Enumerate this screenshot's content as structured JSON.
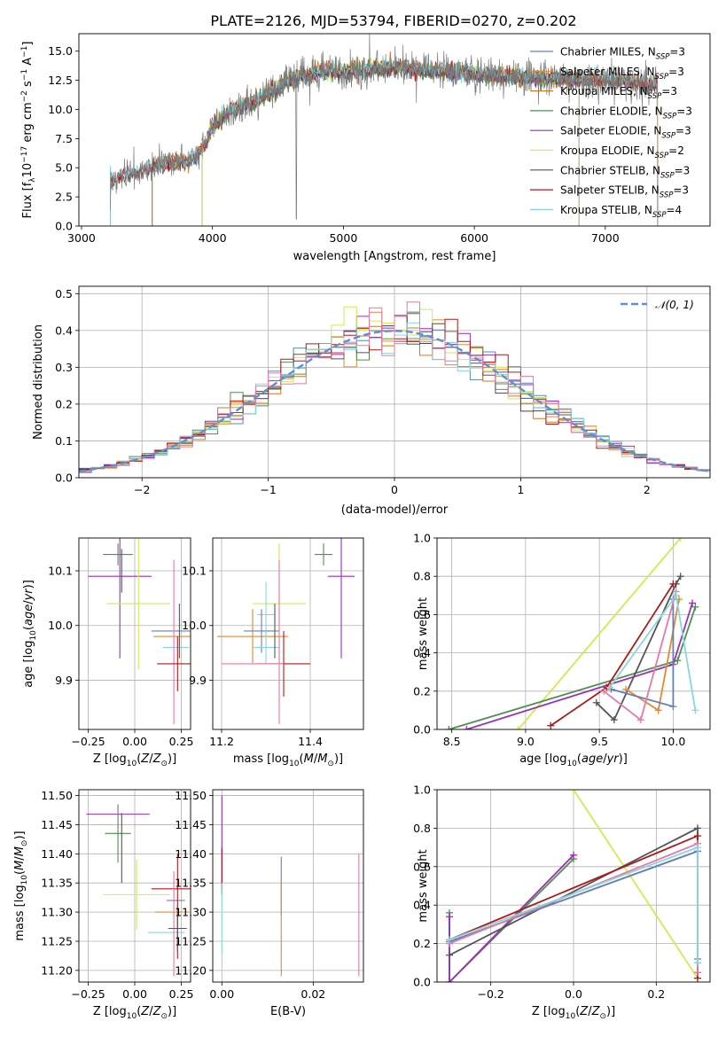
{
  "title": "PLATE=2126, MJD=53794, FIBERID=0270, z=0.202",
  "colors": {
    "chabrier_miles": "#5f81c4",
    "salpeter_miles": "#e8872c",
    "kroupa_miles": "#c97c21",
    "chabrier_elodie": "#4f8f4f",
    "salpeter_elodie": "#9b2fb8",
    "kroupa_elodie": "#d6e84f",
    "chabrier_stelib": "#555555",
    "salpeter_stelib": "#b01818",
    "kroupa_stelib": "#86d8e0",
    "pink": "#e878a8",
    "normal_curve": "#5f8fd8",
    "grid": "#b0b0b0"
  },
  "chart_data": [
    {
      "id": "spectrum",
      "type": "line",
      "xlabel": "wavelength [Angstrom, rest frame]",
      "ylabel": "Flux [fλ10⁻¹⁷ erg cm⁻² s⁻¹ A⁻¹]",
      "xlim": [
        2980,
        7800
      ],
      "ylim": [
        0,
        16.5
      ],
      "xticks": [
        "3000",
        "4000",
        "5000",
        "6000",
        "7000"
      ],
      "yticks": [
        "0.0",
        "2.5",
        "5.0",
        "7.5",
        "10.0",
        "12.5",
        "15.0"
      ],
      "grid": false,
      "legend_position": "top-right",
      "continuum": {
        "x": [
          3220,
          3300,
          3400,
          3500,
          3600,
          3700,
          3800,
          3900,
          3950,
          4000,
          4100,
          4200,
          4300,
          4400,
          4500,
          4600,
          4700,
          4800,
          4900,
          5000,
          5200,
          5400,
          5600,
          5800,
          6000,
          6200,
          6400,
          6600,
          6800,
          7000,
          7200,
          7400
        ],
        "y": [
          3.8,
          4.3,
          4.6,
          4.9,
          5.2,
          5.6,
          5.4,
          6.2,
          7.2,
          8.6,
          9.6,
          10.2,
          10.6,
          11.3,
          11.9,
          12.6,
          12.9,
          13.2,
          13.4,
          13.2,
          13.5,
          13.6,
          13.4,
          13.3,
          13.1,
          12.9,
          12.8,
          12.7,
          12.6,
          12.5,
          12.3,
          12.2
        ]
      },
      "series": [
        {
          "name": "Chabrier MILES, N_SSP=3",
          "color": "#5f81c4",
          "xstart": 3540,
          "xend": 7400
        },
        {
          "name": "Salpeter MILES, N_SSP=3",
          "color": "#e8872c",
          "xstart": 3540,
          "xend": 7400
        },
        {
          "name": "Kroupa MILES, N_SSP=3",
          "color": "#c97c21",
          "xstart": 3540,
          "xend": 7400
        },
        {
          "name": "Chabrier ELODIE, N_SSP=3",
          "color": "#4f8f4f",
          "xstart": 3920,
          "xend": 6800
        },
        {
          "name": "Salpeter ELODIE, N_SSP=3",
          "color": "#9b2fb8",
          "xstart": 3920,
          "xend": 6800
        },
        {
          "name": "Kroupa ELODIE, N_SSP=2",
          "color": "#d6e84f",
          "xstart": 3920,
          "xend": 6800
        },
        {
          "name": "Chabrier STELIB, N_SSP=3",
          "color": "#555555",
          "xstart": 3220,
          "xend": 7400
        },
        {
          "name": "Salpeter STELIB, N_SSP=3",
          "color": "#b01818",
          "xstart": 3220,
          "xend": 7400
        },
        {
          "name": "Kroupa STELIB, N_SSP=4",
          "color": "#86d8e0",
          "xstart": 3220,
          "xend": 7400
        }
      ],
      "legend": [
        {
          "pre": "Chabrier MILES, N",
          "sub": "SSP",
          "post": "=3",
          "color": "#5f81c4"
        },
        {
          "pre": "Salpeter MILES, N",
          "sub": "SSP",
          "post": "=3",
          "color": "#e8872c"
        },
        {
          "pre": "Kroupa MILES, N",
          "sub": "SSP",
          "post": "=3",
          "color": "#c97c21"
        },
        {
          "pre": "Chabrier ELODIE, N",
          "sub": "SSP",
          "post": "=3",
          "color": "#4f8f4f"
        },
        {
          "pre": "Salpeter ELODIE, N",
          "sub": "SSP",
          "post": "=3",
          "color": "#9b2fb8"
        },
        {
          "pre": "Kroupa ELODIE, N",
          "sub": "SSP",
          "post": "=2",
          "color": "#d6e84f"
        },
        {
          "pre": "Chabrier STELIB, N",
          "sub": "SSP",
          "post": "=3",
          "color": "#555555"
        },
        {
          "pre": "Salpeter STELIB, N",
          "sub": "SSP",
          "post": "=3",
          "color": "#b01818"
        },
        {
          "pre": "Kroupa STELIB, N",
          "sub": "SSP",
          "post": "=4",
          "color": "#86d8e0"
        }
      ]
    },
    {
      "id": "residuals",
      "type": "line",
      "xlabel": "(data-model)/error",
      "ylabel": "Normed distribution",
      "xlim": [
        -2.5,
        2.5
      ],
      "ylim": [
        0,
        0.52
      ],
      "xticks": [
        "−2",
        "−1",
        "0",
        "1",
        "2"
      ],
      "yticks": [
        "0.0",
        "0.1",
        "0.2",
        "0.3",
        "0.4",
        "0.5"
      ],
      "grid": true,
      "legend_position": "top-right",
      "legend": [
        {
          "text": "𝒩(0, 1)",
          "color": "#5f8fd8"
        }
      ],
      "bin_width": 0.1
    },
    {
      "id": "age_vs_Z",
      "type": "scatter",
      "xlabel": "Z [log₁₀(Z/Z⊙)]",
      "ylabel": "age  [log₁₀(age/yr)]",
      "xlim": [
        -0.3,
        0.3
      ],
      "ylim": [
        9.81,
        10.16
      ],
      "xticks": [
        "−0.25",
        "0.00",
        "0.25"
      ],
      "yticks": [
        "9.9",
        "10.0",
        "10.1"
      ],
      "grid": true,
      "points": [
        {
          "x": -0.09,
          "y": 10.13,
          "xerr": 0.08,
          "yerr": 0.02,
          "color": "#4f8f4f"
        },
        {
          "x": -0.08,
          "y": 10.09,
          "xerr": 0.17,
          "yerr": 0.15,
          "color": "#9b2fb8"
        },
        {
          "x": -0.07,
          "y": 10.1,
          "xerr": 0.0,
          "yerr": 0.04,
          "color": "#555555"
        },
        {
          "x": 0.02,
          "y": 10.04,
          "xerr": 0.17,
          "yerr": 0.12,
          "color": "#d6e84f"
        },
        {
          "x": 0.2,
          "y": 9.99,
          "xerr": 0.11,
          "yerr": 0.0,
          "color": "#5f81c4"
        },
        {
          "x": 0.2,
          "y": 9.98,
          "xerr": 0.1,
          "yerr": 0.0,
          "color": "#e8872c"
        },
        {
          "x": 0.22,
          "y": 9.96,
          "xerr": 0.07,
          "yerr": 0.0,
          "color": "#86d8e0"
        },
        {
          "x": 0.21,
          "y": 9.97,
          "xerr": 0.0,
          "yerr": 0.15,
          "color": "#e878a8"
        },
        {
          "x": 0.23,
          "y": 9.93,
          "xerr": 0.11,
          "yerr": 0.05,
          "color": "#b01818"
        },
        {
          "x": 0.24,
          "y": 9.99,
          "xerr": 0.0,
          "yerr": 0.05,
          "color": "#555555"
        }
      ]
    },
    {
      "id": "age_vs_mass",
      "type": "scatter",
      "xlabel": "mass [log₁₀(M/M⊙)]",
      "ylabel": "",
      "xlim": [
        11.18,
        11.52
      ],
      "ylim": [
        9.81,
        10.16
      ],
      "xticks": [
        "11.2",
        "11.4"
      ],
      "yticks": [
        "9.9",
        "10.0",
        "10.1"
      ],
      "grid": true,
      "points": [
        {
          "x": 11.43,
          "y": 10.13,
          "xerr": 0.02,
          "yerr": 0.02,
          "color": "#4f8f4f"
        },
        {
          "x": 11.47,
          "y": 10.09,
          "xerr": 0.03,
          "yerr": 0.15,
          "color": "#9b2fb8"
        },
        {
          "x": 11.33,
          "y": 10.04,
          "xerr": 0.06,
          "yerr": 0.11,
          "color": "#d6e84f"
        },
        {
          "x": 11.3,
          "y": 10.02,
          "xerr": 0.02,
          "yerr": 0.06,
          "color": "#86d8e0"
        },
        {
          "x": 11.27,
          "y": 9.98,
          "xerr": 0.08,
          "yerr": 0.05,
          "color": "#e8872c"
        },
        {
          "x": 11.29,
          "y": 9.99,
          "xerr": 0.04,
          "yerr": 0.04,
          "color": "#5f81c4"
        },
        {
          "x": 11.3,
          "y": 9.96,
          "xerr": 0.03,
          "yerr": 0.03,
          "color": "#86d8e0"
        },
        {
          "x": 11.34,
          "y": 9.93,
          "xerr": 0.06,
          "yerr": 0.06,
          "color": "#b01818"
        },
        {
          "x": 11.33,
          "y": 9.97,
          "xerr": 0.0,
          "yerr": 0.15,
          "color": "#e878a8"
        },
        {
          "x": 11.27,
          "y": 9.93,
          "xerr": 0.07,
          "yerr": 0.0,
          "color": "#e878a8"
        },
        {
          "x": 11.32,
          "y": 9.99,
          "xerr": 0.0,
          "yerr": 0.05,
          "color": "#555555"
        }
      ]
    },
    {
      "id": "weight_vs_age",
      "type": "line",
      "xlabel": "age  [log₁₀(age/yr)]",
      "ylabel": "mass weight",
      "xlim": [
        8.4,
        10.25
      ],
      "ylim": [
        0,
        1
      ],
      "xticks": [
        "8.5",
        "9.0",
        "9.5",
        "10.0"
      ],
      "yticks": [
        "0.0",
        "0.2",
        "0.4",
        "0.6",
        "0.8",
        "1.0"
      ],
      "grid": true,
      "series": [
        {
          "color": "#d6e84f",
          "x": [
            8.95,
            10.05
          ],
          "y": [
            0.0,
            1.0
          ]
        },
        {
          "color": "#4f8f4f",
          "x": [
            8.48,
            10.03,
            10.15
          ],
          "y": [
            0.0,
            0.36,
            0.64
          ]
        },
        {
          "color": "#9b2fb8",
          "x": [
            8.6,
            10.0,
            10.13
          ],
          "y": [
            0.0,
            0.34,
            0.66
          ]
        },
        {
          "color": "#555555",
          "x": [
            9.48,
            9.6,
            10.02,
            10.05
          ],
          "y": [
            0.14,
            0.05,
            0.76,
            0.8
          ]
        },
        {
          "color": "#b01818",
          "x": [
            9.17,
            9.55,
            10.0
          ],
          "y": [
            0.02,
            0.22,
            0.76
          ]
        },
        {
          "color": "#e8872c",
          "x": [
            9.68,
            9.9,
            10.04
          ],
          "y": [
            0.21,
            0.1,
            0.68
          ]
        },
        {
          "color": "#5f81c4",
          "x": [
            9.58,
            10.0,
            10.0
          ],
          "y": [
            0.21,
            0.12,
            0.68
          ]
        },
        {
          "color": "#e878a8",
          "x": [
            9.53,
            9.78,
            10.02
          ],
          "y": [
            0.2,
            0.05,
            0.72
          ]
        },
        {
          "color": "#86d8e0",
          "x": [
            9.57,
            10.02,
            10.15
          ],
          "y": [
            0.22,
            0.7,
            0.1
          ]
        }
      ]
    },
    {
      "id": "mass_vs_Z",
      "type": "scatter",
      "xlabel": "Z [log₁₀(Z/Z⊙)]",
      "ylabel": "mass [log₁₀(M/M⊙)]",
      "xlim": [
        -0.3,
        0.3
      ],
      "ylim": [
        11.18,
        11.51
      ],
      "xticks": [
        "−0.25",
        "0.00",
        "0.25"
      ],
      "yticks": [
        "11.20",
        "11.25",
        "11.30",
        "11.35",
        "11.40",
        "11.45",
        "11.50"
      ],
      "grid": true,
      "points": [
        {
          "x": -0.09,
          "y": 11.468,
          "xerr": 0.17,
          "yerr": 0.0,
          "color": "#9b2fb8"
        },
        {
          "x": -0.09,
          "y": 11.435,
          "xerr": 0.07,
          "yerr": 0.05,
          "color": "#4f8f4f"
        },
        {
          "x": -0.07,
          "y": 11.41,
          "xerr": 0.0,
          "yerr": 0.06,
          "color": "#555555"
        },
        {
          "x": 0.01,
          "y": 11.33,
          "xerr": 0.18,
          "yerr": 0.06,
          "color": "#d6e84f"
        },
        {
          "x": 0.2,
          "y": 11.34,
          "xerr": 0.11,
          "yerr": 0.0,
          "color": "#b01818"
        },
        {
          "x": 0.2,
          "y": 11.3,
          "xerr": 0.09,
          "yerr": 0.0,
          "color": "#e8872c"
        },
        {
          "x": 0.22,
          "y": 11.32,
          "xerr": 0.05,
          "yerr": 0.0,
          "color": "#5f81c4"
        },
        {
          "x": 0.17,
          "y": 11.265,
          "xerr": 0.1,
          "yerr": 0.0,
          "color": "#86d8e0"
        },
        {
          "x": 0.21,
          "y": 11.28,
          "xerr": 0.0,
          "yerr": 0.09,
          "color": "#e878a8"
        },
        {
          "x": 0.23,
          "y": 11.31,
          "xerr": 0.0,
          "yerr": 0.09,
          "color": "#b01818"
        },
        {
          "x": 0.23,
          "y": 11.272,
          "xerr": 0.05,
          "yerr": 0.04,
          "color": "#555555"
        }
      ]
    },
    {
      "id": "mass_vs_EBV",
      "type": "scatter",
      "xlabel": "E(B-V)",
      "ylabel": "",
      "xlim": [
        -0.002,
        0.031
      ],
      "ylim": [
        11.18,
        11.51
      ],
      "xticks": [
        "0.00",
        "0.02"
      ],
      "yticks": [
        "11.20",
        "11.25",
        "11.30",
        "11.35",
        "11.40",
        "11.45",
        "11.50"
      ],
      "grid": true,
      "points": [
        {
          "x": 0.0,
          "y": 11.42,
          "xerr": 0.0,
          "yerr": 0.08,
          "color": "#9b2fb8"
        },
        {
          "x": 0.0,
          "y": 11.37,
          "xerr": 0.0,
          "yerr": 0.04,
          "color": "#b01818"
        },
        {
          "x": 0.0,
          "y": 11.29,
          "xerr": 0.0,
          "yerr": 0.06,
          "color": "#86d8e0"
        },
        {
          "x": 0.013,
          "y": 11.345,
          "xerr": 0.0,
          "yerr": 0.05,
          "color": "#5f81c4"
        },
        {
          "x": 0.013,
          "y": 11.275,
          "xerr": 0.0,
          "yerr": 0.085,
          "color": "#e8872c"
        },
        {
          "x": 0.03,
          "y": 11.295,
          "xerr": 0.0,
          "yerr": 0.105,
          "color": "#e878a8"
        }
      ]
    },
    {
      "id": "weight_vs_Z",
      "type": "line",
      "xlabel": "Z [log₁₀(Z/Z⊙)]",
      "ylabel": "mass weight",
      "xlim": [
        -0.33,
        0.33
      ],
      "ylim": [
        0,
        1
      ],
      "xticks": [
        "−0.2",
        "0.0",
        "0.2"
      ],
      "yticks": [
        "0.0",
        "0.2",
        "0.4",
        "0.6",
        "0.8",
        "1.0"
      ],
      "grid": true,
      "series": [
        {
          "color": "#d6e84f",
          "x": [
            0.0,
            0.3
          ],
          "y": [
            1.0,
            0.02
          ]
        },
        {
          "color": "#4f8f4f",
          "x": [
            -0.3,
            -0.3,
            0.0
          ],
          "y": [
            0.36,
            0.0,
            0.64
          ]
        },
        {
          "color": "#9b2fb8",
          "x": [
            -0.3,
            -0.3,
            0.0
          ],
          "y": [
            0.34,
            0.0,
            0.66
          ]
        },
        {
          "color": "#555555",
          "x": [
            -0.3,
            0.3,
            0.3
          ],
          "y": [
            0.14,
            0.8,
            0.05
          ]
        },
        {
          "color": "#b01818",
          "x": [
            -0.3,
            0.3,
            0.3
          ],
          "y": [
            0.22,
            0.76,
            0.02
          ]
        },
        {
          "color": "#e8872c",
          "x": [
            -0.3,
            0.3,
            0.3
          ],
          "y": [
            0.21,
            0.68,
            0.1
          ]
        },
        {
          "color": "#5f81c4",
          "x": [
            -0.3,
            0.3,
            0.3
          ],
          "y": [
            0.21,
            0.68,
            0.12
          ]
        },
        {
          "color": "#e878a8",
          "x": [
            -0.3,
            0.3,
            0.3
          ],
          "y": [
            0.2,
            0.72,
            0.05
          ]
        },
        {
          "color": "#86d8e0",
          "x": [
            -0.3,
            0.3,
            0.3
          ],
          "y": [
            0.22,
            0.7,
            0.1
          ]
        }
      ]
    }
  ]
}
